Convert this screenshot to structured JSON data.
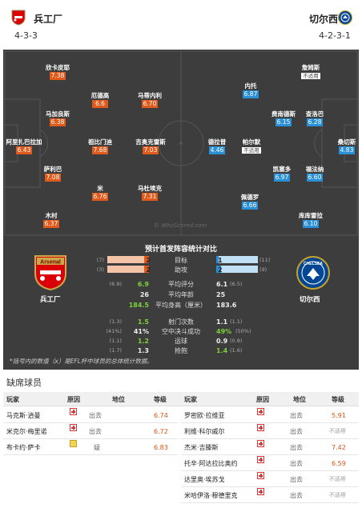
{
  "home": {
    "name": "兵工厂",
    "formation": "4-3-3",
    "label": "兵工厂",
    "crest_text": "Arsenal"
  },
  "away": {
    "name": "切尔西",
    "formation": "4-2-3-1",
    "label": "切尔西",
    "crest_text": "CHELSEA"
  },
  "colors": {
    "home_rating": "#e05a1b",
    "away_rating": "#2b8fd6",
    "pitch": "#3d3d3d",
    "highlight": "#7dd13a"
  },
  "home_players": [
    {
      "name": "欣卡皮耶",
      "rating": "7.38"
    },
    {
      "name": "马加良斯",
      "rating": "6.38"
    },
    {
      "name": "阿里扎巴拉加",
      "rating": "6.43"
    },
    {
      "name": "萨利巴",
      "rating": "7.08"
    },
    {
      "name": "木村",
      "rating": "6.37"
    },
    {
      "name": "厄德高",
      "rating": "6.6"
    },
    {
      "name": "祖比门迪",
      "rating": "7.68"
    },
    {
      "name": "米",
      "rating": "6.76"
    },
    {
      "name": "马蒂内利",
      "rating": "6.70"
    },
    {
      "name": "吉奥克雷斯",
      "rating": "7.03"
    },
    {
      "name": "马杜埃克",
      "rating": "7.31"
    }
  ],
  "away_players": [
    {
      "name": "詹姆斯",
      "rating": "不适用"
    },
    {
      "name": "内托",
      "rating": "6.87"
    },
    {
      "name": "查洛巴",
      "rating": "6.28"
    },
    {
      "name": "费南德斯",
      "rating": "6.15"
    },
    {
      "name": "桑切斯",
      "rating": "4.83"
    },
    {
      "name": "德拉普",
      "rating": "4.46"
    },
    {
      "name": "帕尔默",
      "rating": "不适用"
    },
    {
      "name": "凯塞多",
      "rating": "6.97"
    },
    {
      "name": "福法纳",
      "rating": "6.60"
    },
    {
      "name": "佩德罗",
      "rating": "6.66"
    },
    {
      "name": "库库雷拉",
      "rating": "6.10"
    }
  ],
  "watermark": "© WhoScored.com",
  "stats": {
    "title": "预计首发阵容统计对比",
    "goals": {
      "label": "目标",
      "home": "2",
      "home_prev": "(7)",
      "away": "1",
      "away_prev": "(11)"
    },
    "assists": {
      "label": "助攻",
      "home": "2",
      "home_prev": "(3)",
      "away": "2",
      "away_prev": "(9)"
    },
    "rows1": [
      {
        "label": "平均评分",
        "home": "6.9",
        "home_prev": "(6.9)",
        "away": "6.1",
        "away_prev": "(6.5)"
      },
      {
        "label": "平均年龄",
        "home": "26",
        "home_prev": "",
        "away": "25",
        "away_prev": ""
      },
      {
        "label": "平均身高（厘米）",
        "home": "184.5",
        "home_prev": "",
        "away": "183.6",
        "away_prev": ""
      }
    ],
    "rows2": [
      {
        "label": "射门次数",
        "home": "1.5",
        "home_prev": "(1.3)",
        "away": "1.1",
        "away_prev": "(1.1)"
      },
      {
        "label": "空中决斗成功",
        "home": "41%",
        "home_prev": "(41%)",
        "away": "49%",
        "away_prev": "(50%)"
      },
      {
        "label": "运球",
        "home": "1.2",
        "home_prev": "(1.1)",
        "away": "0.9",
        "away_prev": "(0.8)"
      },
      {
        "label": "抢抱",
        "home": "1.3",
        "home_prev": "(1.7)",
        "away": "1.4",
        "away_prev": "(1.6)"
      }
    ],
    "note": "*括号内的数值（x）是EFL杯中球员的总体统计数据。"
  },
  "absences": {
    "title": "缺席球员",
    "headers": {
      "player": "玩家",
      "reason": "原因",
      "status": "地位",
      "rating": "等级"
    },
    "home": [
      {
        "name": "马克斯·逍曼",
        "reason": "injury",
        "status": "出去",
        "rating": "6.74"
      },
      {
        "name": "米克尔·梅里诺",
        "reason": "injury",
        "status": "出去",
        "rating": "6.72"
      },
      {
        "name": "布卡约·萨卡",
        "reason": "doubtful",
        "status": "疑",
        "rating": "6.83"
      }
    ],
    "away": [
      {
        "name": "罗密欧·拉维亚",
        "reason": "injury",
        "status": "出去",
        "rating": "5.91"
      },
      {
        "name": "利维·科尔威尔",
        "reason": "injury",
        "status": "出去",
        "rating": "不适用"
      },
      {
        "name": "杰米·吉滕斯",
        "reason": "injury",
        "status": "出去",
        "rating": "7.42"
      },
      {
        "name": "托辛·阿达拉比奥约",
        "reason": "injury",
        "status": "出去",
        "rating": "6.59"
      },
      {
        "name": "达里奥·埃苏戈",
        "reason": "injury",
        "status": "出去",
        "rating": "不适用"
      },
      {
        "name": "米哈伊洛·穆德里克",
        "reason": "injury",
        "status": "出去",
        "rating": "不适用"
      }
    ]
  }
}
